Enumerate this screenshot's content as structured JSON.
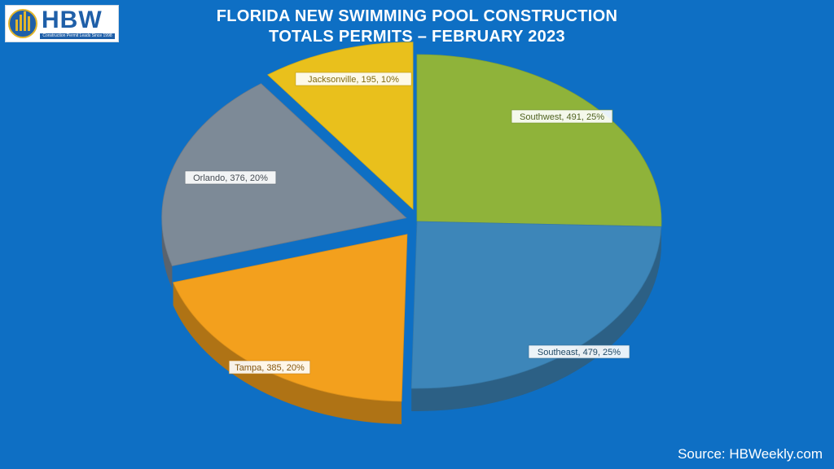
{
  "logo": {
    "text": "HBW",
    "tagline": "Construction Permit Leads Since 1998"
  },
  "title_line1": "FLORIDA NEW SWIMMING POOL CONSTRUCTION",
  "title_line2": "TOTALS PERMITS – FEBRUARY 2023",
  "source": "Source: HBWeekly.com",
  "chart_data": {
    "type": "pie",
    "title": "FLORIDA NEW SWIMMING POOL CONSTRUCTION TOTALS PERMITS – FEBRUARY 2023",
    "categories": [
      "Southwest",
      "Southeast",
      "Tampa",
      "Orlando",
      "Jacksonville"
    ],
    "values": [
      491,
      479,
      385,
      376,
      195
    ],
    "percents": [
      25,
      25,
      20,
      20,
      10
    ],
    "data_labels": [
      "Southwest, 491, 25%",
      "Southeast, 479, 25%",
      "Tampa, 385, 20%",
      "Orlando, 376, 20%",
      "Jacksonville, 195, 10%"
    ],
    "colors": [
      "#8fb33a",
      "#3d86b9",
      "#f3a01d",
      "#7d8a97",
      "#e9c01c"
    ],
    "style": "3d-exploded"
  }
}
